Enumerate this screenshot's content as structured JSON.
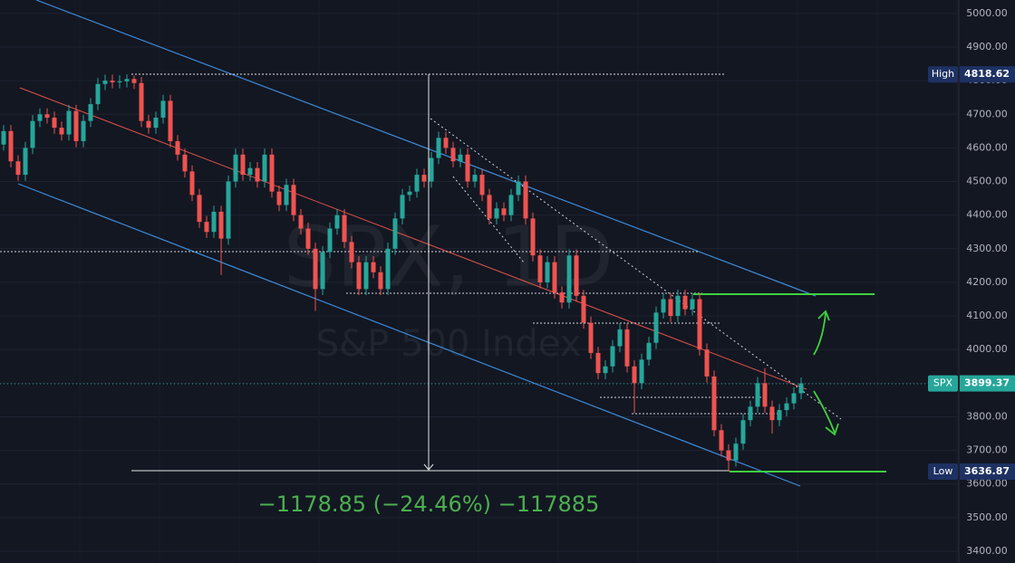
{
  "chart_data": {
    "type": "candlestick",
    "title": "SPX, 1D",
    "subtitle": "S&P 500 Index",
    "annotation": "−1178.85 (−24.46%) −117885",
    "up_color": "#26a69a",
    "down_color": "#ef5350",
    "ylim": [
      3365,
      5040
    ],
    "yticks": [
      {
        "value": 3400,
        "label": "3400.00"
      },
      {
        "value": 3500,
        "label": "3500.00"
      },
      {
        "value": 3600,
        "label": "3600.00"
      },
      {
        "value": 3700,
        "label": "3700.00"
      },
      {
        "value": 3800,
        "label": "3800.00"
      },
      {
        "value": 3900,
        "label": "3900.00"
      },
      {
        "value": 4000,
        "label": "4000.00"
      },
      {
        "value": 4100,
        "label": "4100.00"
      },
      {
        "value": 4200,
        "label": "4200.00"
      },
      {
        "value": 4300,
        "label": "4300.00"
      },
      {
        "value": 4400,
        "label": "4400.00"
      },
      {
        "value": 4500,
        "label": "4500.00"
      },
      {
        "value": 4600,
        "label": "4600.00"
      },
      {
        "value": 4700,
        "label": "4700.00"
      },
      {
        "value": 4800,
        "label": "4800.00"
      },
      {
        "value": 4900,
        "label": "4900.00"
      },
      {
        "value": 5000,
        "label": "5000.00"
      }
    ],
    "grid": true,
    "price_labels": [
      {
        "label": "High",
        "value": 4818.62,
        "color": "#1e3163"
      },
      {
        "label": "SPX",
        "value": 3899.37,
        "color": "#26a69a"
      },
      {
        "label": "Low",
        "value": 3636.87,
        "color": "#1e3163"
      }
    ],
    "open": [
      4610,
      4650,
      4560,
      4520,
      4600,
      4680,
      4700,
      4690,
      4660,
      4640,
      4710,
      4620,
      4680,
      4730,
      4790,
      4800,
      4795,
      4798,
      4805,
      4793,
      4680,
      4660,
      4690,
      4740,
      4620,
      4580,
      4530,
      4460,
      4380,
      4350,
      4410,
      4330,
      4500,
      4580,
      4520,
      4540,
      4500,
      4580,
      4470,
      4430,
      4490,
      4400,
      4360,
      4300,
      4180,
      4290,
      4360,
      4400,
      4320,
      4260,
      4180,
      4260,
      4230,
      4180,
      4300,
      4390,
      4460,
      4470,
      4520,
      4500,
      4570,
      4630,
      4600,
      4560,
      4580,
      4500,
      4520,
      4460,
      4390,
      4420,
      4400,
      4460,
      4500,
      4390,
      4280,
      4200,
      4260,
      4170,
      4140,
      4280,
      4160,
      4080,
      3990,
      3930,
      3950,
      4010,
      4060,
      3950,
      3900,
      3970,
      4020,
      4110,
      4150,
      4100,
      4160,
      4120,
      4150,
      4000,
      3920,
      3760,
      3700,
      3670,
      3720,
      3790,
      3830,
      3900,
      3830,
      3790,
      3820,
      3840,
      3870
    ],
    "high": [
      4668,
      4668,
      4578,
      4618,
      4698,
      4718,
      4718,
      4708,
      4678,
      4728,
      4728,
      4698,
      4748,
      4808,
      4818,
      4818,
      4816,
      4818.62,
      4815,
      4811,
      4698,
      4708,
      4758,
      4758,
      4638,
      4598,
      4548,
      4478,
      4398,
      4428,
      4428,
      4518,
      4598,
      4598,
      4558,
      4558,
      4598,
      4598,
      4488,
      4508,
      4508,
      4418,
      4378,
      4318,
      4308,
      4378,
      4418,
      4418,
      4338,
      4278,
      4278,
      4278,
      4248,
      4318,
      4408,
      4478,
      4488,
      4538,
      4538,
      4588,
      4648,
      4648,
      4618,
      4598,
      4598,
      4538,
      4538,
      4478,
      4438,
      4438,
      4478,
      4518,
      4518,
      4408,
      4298,
      4278,
      4278,
      4188,
      4298,
      4298,
      4178,
      4098,
      4008,
      3968,
      4028,
      4078,
      4078,
      3968,
      3988,
      4038,
      4128,
      4168,
      4168,
      4178,
      4178,
      4168,
      4168,
      4018,
      3938,
      3778,
      3718,
      3738,
      3808,
      3848,
      3918,
      3945,
      3848,
      3838,
      3858,
      3888,
      3917
    ],
    "low": [
      4592,
      4542,
      4502,
      4502,
      4582,
      4662,
      4672,
      4642,
      4622,
      4622,
      4602,
      4602,
      4662,
      4712,
      4772,
      4777,
      4777,
      4780,
      4775,
      4662,
      4642,
      4642,
      4672,
      4602,
      4562,
      4512,
      4442,
      4362,
      4332,
      4332,
      4222,
      4312,
      4482,
      4502,
      4502,
      4482,
      4482,
      4452,
      4412,
      4412,
      4382,
      4342,
      4282,
      4115,
      4162,
      4272,
      4342,
      4302,
      4242,
      4162,
      4162,
      4212,
      4162,
      4162,
      4282,
      4372,
      4442,
      4452,
      4482,
      4482,
      4552,
      4582,
      4542,
      4542,
      4482,
      4482,
      4442,
      4372,
      4372,
      4382,
      4382,
      4442,
      4372,
      4262,
      4182,
      4182,
      4152,
      4122,
      4122,
      4142,
      4062,
      3972,
      3912,
      3912,
      3932,
      3992,
      3932,
      3810,
      3882,
      3952,
      4002,
      4092,
      4082,
      4082,
      4102,
      4102,
      3982,
      3902,
      3742,
      3682,
      3636.87,
      3652,
      3702,
      3772,
      3812,
      3812,
      3750,
      3772,
      3802,
      3822,
      3852
    ],
    "close": [
      4650,
      4560,
      4520,
      4600,
      4680,
      4700,
      4690,
      4660,
      4640,
      4710,
      4620,
      4680,
      4730,
      4790,
      4800,
      4795,
      4798,
      4805,
      4793,
      4680,
      4660,
      4690,
      4740,
      4620,
      4580,
      4530,
      4460,
      4380,
      4350,
      4410,
      4330,
      4500,
      4580,
      4520,
      4540,
      4500,
      4580,
      4470,
      4430,
      4490,
      4400,
      4360,
      4300,
      4180,
      4290,
      4360,
      4400,
      4320,
      4260,
      4180,
      4260,
      4230,
      4180,
      4300,
      4390,
      4460,
      4470,
      4520,
      4500,
      4570,
      4630,
      4600,
      4560,
      4580,
      4500,
      4520,
      4460,
      4390,
      4420,
      4400,
      4460,
      4500,
      4390,
      4280,
      4200,
      4260,
      4170,
      4140,
      4280,
      4160,
      4080,
      3990,
      3930,
      3950,
      4010,
      4060,
      3950,
      3900,
      3970,
      4020,
      4110,
      4150,
      4100,
      4160,
      4120,
      4150,
      4000,
      3920,
      3760,
      3700,
      3670,
      3720,
      3790,
      3830,
      3900,
      3830,
      3790,
      3820,
      3840,
      3870,
      3899.37
    ]
  }
}
